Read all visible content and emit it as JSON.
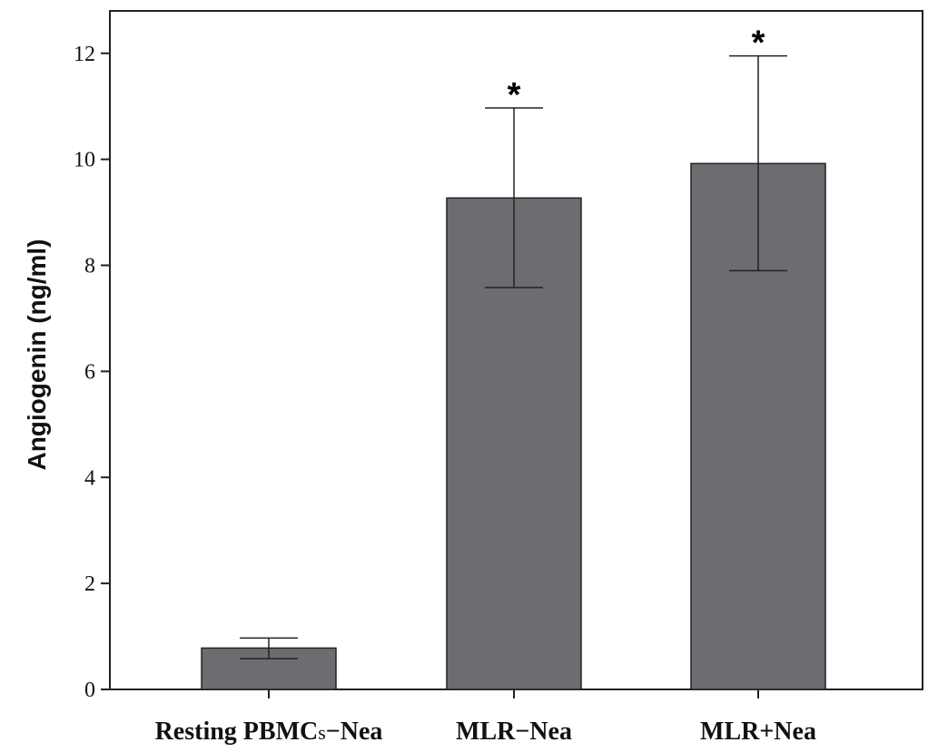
{
  "chart_data": {
    "type": "bar",
    "categories": [
      "Resting PBMCs−Nea",
      "MLR−Nea",
      "MLR+Nea"
    ],
    "category_parts": [
      {
        "main": "Resting PBMC",
        "sub": "s",
        "rest": "−Nea"
      },
      {
        "main": "MLR−Nea",
        "sub": "",
        "rest": ""
      },
      {
        "main": "MLR+Nea",
        "sub": "",
        "rest": ""
      }
    ],
    "values": [
      0.78,
      9.27,
      9.92
    ],
    "error_low": [
      0.58,
      7.58,
      7.9
    ],
    "error_high": [
      0.97,
      10.97,
      11.95
    ],
    "significance": [
      "",
      "*",
      "*"
    ],
    "ylabel": "Angiogenin (ng/ml)",
    "xlabel": "",
    "title": "",
    "ylim": [
      0,
      12.8
    ],
    "yticks": [
      0,
      2,
      4,
      6,
      8,
      10,
      12
    ],
    "grid": false,
    "bar_color": "#6d6c70",
    "bar_edge_color": "#222222"
  }
}
